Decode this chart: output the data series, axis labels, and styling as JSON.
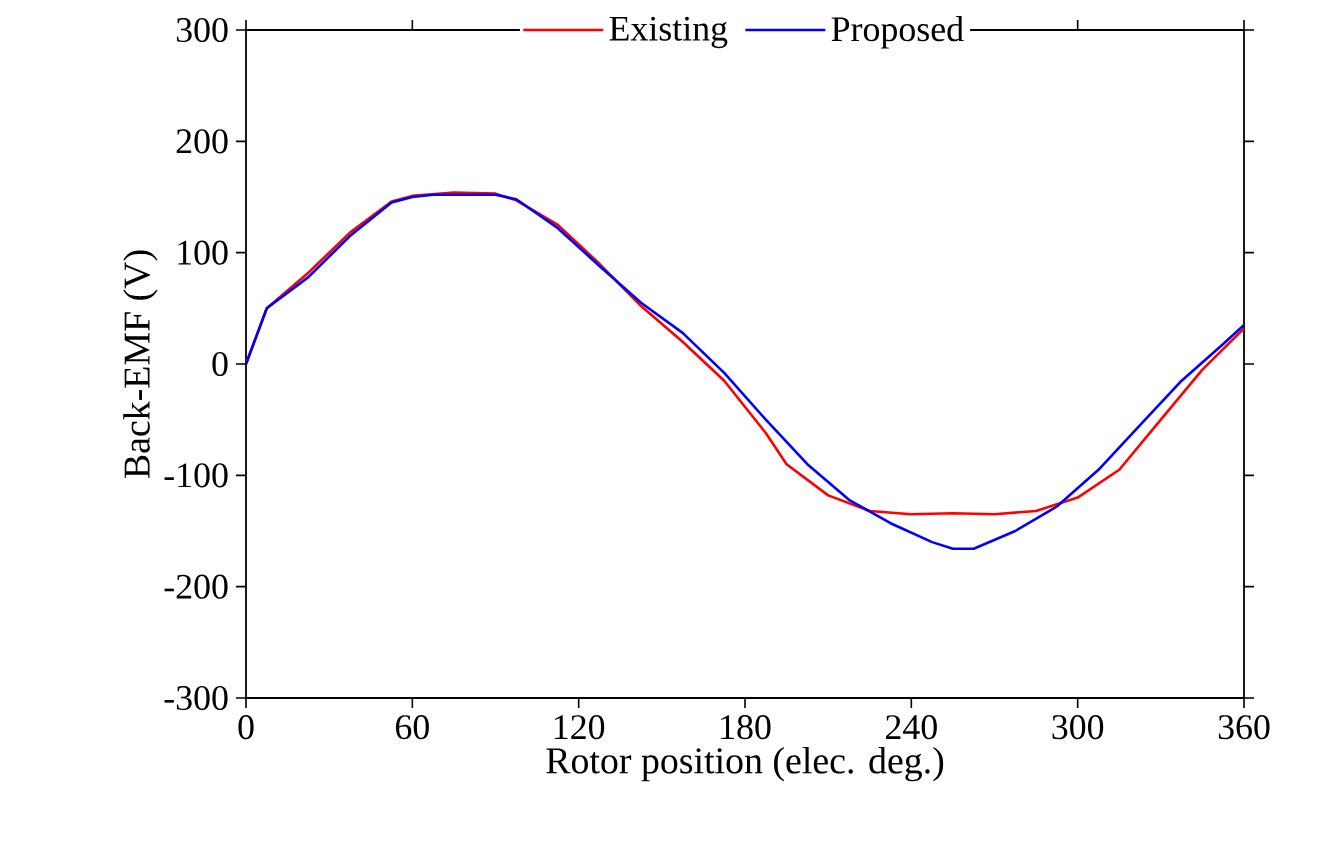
{
  "chart_data": {
    "type": "line",
    "xlabel": "Rotor position (elec. deg.)",
    "ylabel": "Back-EMF (V)",
    "xlim": [
      0,
      360
    ],
    "xticks": [
      0,
      60,
      120,
      180,
      240,
      300,
      360
    ],
    "ylim": [
      -300,
      300
    ],
    "yticks": [
      -300,
      -200,
      -100,
      0,
      100,
      200,
      300
    ],
    "legend": "top",
    "grid": false,
    "marker": "none",
    "line_style": "solid",
    "series": [
      {
        "name": "Existing",
        "color": "#ff0000",
        "x": [
          0,
          7.5,
          22.5,
          37.5,
          52.5,
          60,
          75,
          90,
          97.5,
          112.5,
          127.5,
          142.5,
          157.5,
          172.5,
          187.5,
          195,
          210,
          225,
          240,
          255,
          270,
          285,
          300,
          315,
          330,
          345,
          360
        ],
        "values": [
          0,
          50,
          82,
          118,
          146,
          151,
          154,
          153,
          147,
          125,
          90,
          52,
          20,
          -15,
          -62,
          -90,
          -118,
          -132,
          -135,
          -134,
          -135,
          -132,
          -120,
          -95,
          -50,
          -5,
          32
        ]
      },
      {
        "name": "Proposed",
        "color": "#0000ff",
        "x": [
          0,
          7.5,
          22.5,
          37.5,
          52.5,
          60,
          67.5,
          75,
          90,
          97.5,
          112.5,
          127.5,
          142.5,
          157.5,
          172.5,
          187.5,
          202.5,
          217.5,
          232.5,
          247.5,
          255,
          262.5,
          277.5,
          292.5,
          307.5,
          322.5,
          337.5,
          352.5,
          360
        ],
        "values": [
          0,
          50,
          78,
          115,
          145,
          150,
          152,
          152,
          152,
          148,
          122,
          88,
          55,
          28,
          -8,
          -50,
          -90,
          -122,
          -143,
          -160,
          -166,
          -166,
          -150,
          -128,
          -95,
          -55,
          -15,
          18,
          35
        ]
      }
    ]
  }
}
